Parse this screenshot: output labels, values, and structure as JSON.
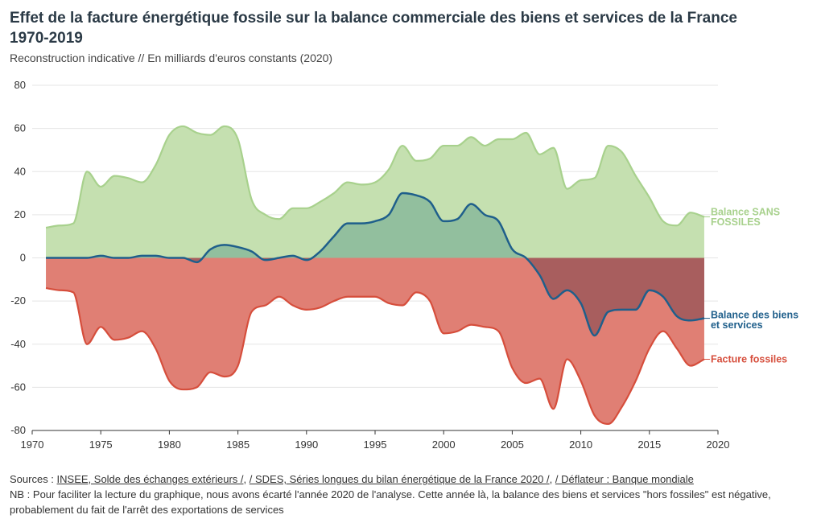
{
  "title_line1": "Effet de la facture énergétique fossile sur la balance commerciale des biens et services de la France",
  "title_line2": "1970-2019",
  "subtitle": "Reconstruction indicative // En milliards d'euros constants (2020)",
  "colors": {
    "sans_fossiles_fill": "#c5e0b0",
    "sans_fossiles_line": "#a8d18d",
    "fossiles_fill": "#e07f74",
    "fossiles_line": "#d64e3c",
    "balance_line": "#1f5f8b",
    "pos_overlap": "#92bf9e",
    "neg_overlap": "#a85e5e"
  },
  "chart_data": {
    "type": "area",
    "x": [
      1971,
      1972,
      1973,
      1974,
      1975,
      1976,
      1977,
      1978,
      1979,
      1980,
      1981,
      1982,
      1983,
      1984,
      1985,
      1986,
      1987,
      1988,
      1989,
      1990,
      1991,
      1992,
      1993,
      1994,
      1995,
      1996,
      1997,
      1998,
      1999,
      2000,
      2001,
      2002,
      2003,
      2004,
      2005,
      2006,
      2007,
      2008,
      2009,
      2010,
      2011,
      2012,
      2013,
      2014,
      2015,
      2016,
      2017,
      2018,
      2019
    ],
    "series": [
      {
        "name": "Balance SANS FOSSILES",
        "values": [
          14,
          15,
          16,
          40,
          33,
          38,
          37,
          35,
          43,
          57,
          61,
          58,
          57,
          61,
          55,
          27,
          20,
          18,
          23,
          23,
          26,
          30,
          35,
          34,
          35,
          41,
          52,
          45,
          46,
          52,
          52,
          56,
          52,
          55,
          55,
          58,
          48,
          51,
          32,
          36,
          37,
          52,
          49,
          38,
          28,
          17,
          15,
          21,
          19
        ]
      },
      {
        "name": "Balance des biens et services",
        "values": [
          0,
          0,
          0,
          0,
          1,
          0,
          0,
          1,
          1,
          0,
          0,
          -2,
          4,
          6,
          5,
          3,
          -1,
          0,
          1,
          -1,
          3,
          10,
          16,
          16,
          17,
          20,
          30,
          29,
          26,
          17,
          18,
          25,
          20,
          17,
          4,
          0,
          -8,
          -19,
          -15,
          -21,
          -36,
          -25,
          -24,
          -24,
          -15,
          -18,
          -27,
          -29,
          -28
        ]
      },
      {
        "name": "Facture fossiles",
        "values": [
          -14,
          -15,
          -16,
          -40,
          -32,
          -38,
          -37,
          -34,
          -42,
          -57,
          -61,
          -60,
          -53,
          -55,
          -50,
          -25,
          -22,
          -18,
          -22,
          -24,
          -23,
          -20,
          -18,
          -18,
          -18,
          -21,
          -22,
          -16,
          -20,
          -35,
          -34,
          -31,
          -32,
          -34,
          -51,
          -58,
          -56,
          -70,
          -47,
          -57,
          -73,
          -77,
          -69,
          -57,
          -42,
          -34,
          -42,
          -50,
          -47
        ]
      }
    ],
    "xlim": [
      1970,
      2020
    ],
    "ylim": [
      -80,
      80
    ],
    "xticks": [
      1970,
      1975,
      1980,
      1985,
      1990,
      1995,
      2000,
      2005,
      2010,
      2015,
      2020
    ],
    "yticks": [
      80,
      60,
      40,
      20,
      0,
      -20,
      -40,
      -60,
      -80
    ],
    "labels": {
      "sans_fossiles": [
        "Balance SANS",
        "FOSSILES"
      ],
      "balance": [
        "Balance des biens",
        "et services"
      ],
      "fossiles": [
        "Facture fossiles"
      ]
    }
  },
  "footer": {
    "sources_prefix": "Sources : ",
    "source1": "INSEE, Solde des échanges extérieurs /",
    "sep1": ", ",
    "source2": "/ SDES, Séries longues du bilan énergétique de la France 2020 /",
    "sep2": ", ",
    "source3": "/ Déflateur : Banque mondiale",
    "nb_line1": "NB : Pour faciliter la lecture du graphique, nous avons écarté l'année 2020 de l'analyse. Cette année là, la balance des biens et services \"hors fossiles\" est négative,",
    "nb_line2": "probablement du fait de l'arrêt des exportations de services"
  }
}
